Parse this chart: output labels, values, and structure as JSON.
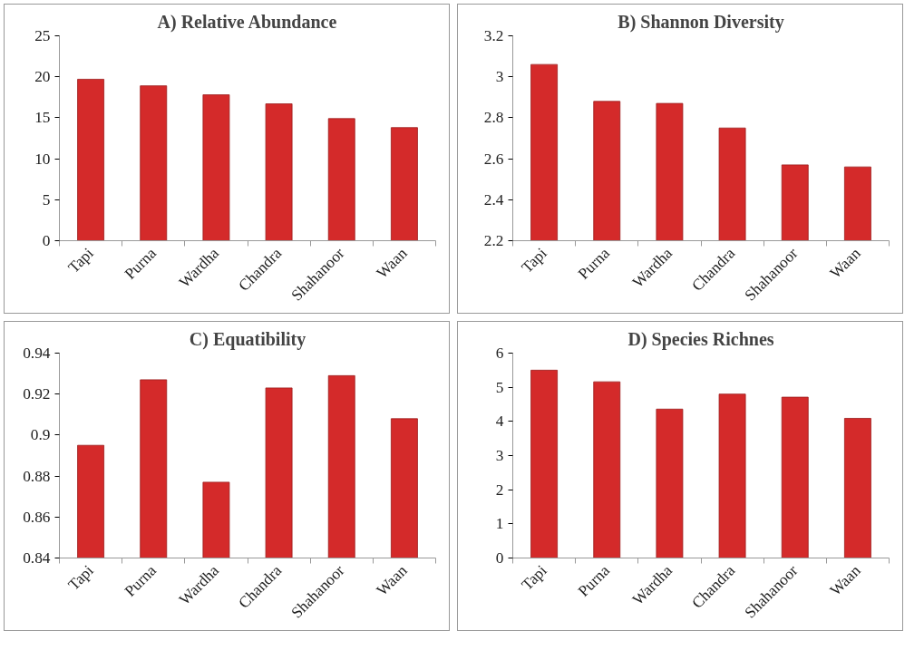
{
  "chart_data": [
    {
      "type": "bar",
      "title": "A) Relative Abundance",
      "categories": [
        "Tapi",
        "Purna",
        "Wardha",
        "Chandra",
        "Shahanoor",
        "Waan"
      ],
      "values": [
        19.7,
        18.9,
        17.8,
        16.7,
        14.9,
        13.8
      ],
      "color": "#d42a2a",
      "ylim": [
        0,
        25
      ],
      "yticks": [
        0,
        5,
        10,
        15,
        20,
        25
      ]
    },
    {
      "type": "bar",
      "title": "B) Shannon Diversity",
      "categories": [
        "Tapi",
        "Purna",
        "Wardha",
        "Chandra",
        "Shahanoor",
        "Waan"
      ],
      "values": [
        3.06,
        2.88,
        2.87,
        2.75,
        2.57,
        2.56
      ],
      "color": "#d42a2a",
      "ylim": [
        2.2,
        3.2
      ],
      "yticks": [
        2.2,
        2.4,
        2.6,
        2.8,
        3,
        3.2
      ]
    },
    {
      "type": "bar",
      "title": "C) Equatibility",
      "categories": [
        "Tapi",
        "Purna",
        "Wardha",
        "Chandra",
        "Shahanoor",
        "Waan"
      ],
      "values": [
        0.895,
        0.927,
        0.877,
        0.923,
        0.929,
        0.908
      ],
      "color": "#d42a2a",
      "ylim": [
        0.84,
        0.94
      ],
      "yticks": [
        0.84,
        0.86,
        0.88,
        0.9,
        0.92,
        0.94
      ]
    },
    {
      "type": "bar",
      "title": "D) Species Richnes",
      "categories": [
        "Tapi",
        "Purna",
        "Wardha",
        "Chandra",
        "Shahanoor",
        "Waan"
      ],
      "values": [
        5.5,
        5.16,
        4.36,
        4.8,
        4.71,
        4.09
      ],
      "color": "#d42a2a",
      "ylim": [
        0,
        6
      ],
      "yticks": [
        0,
        1,
        2,
        3,
        4,
        5,
        6
      ]
    }
  ]
}
